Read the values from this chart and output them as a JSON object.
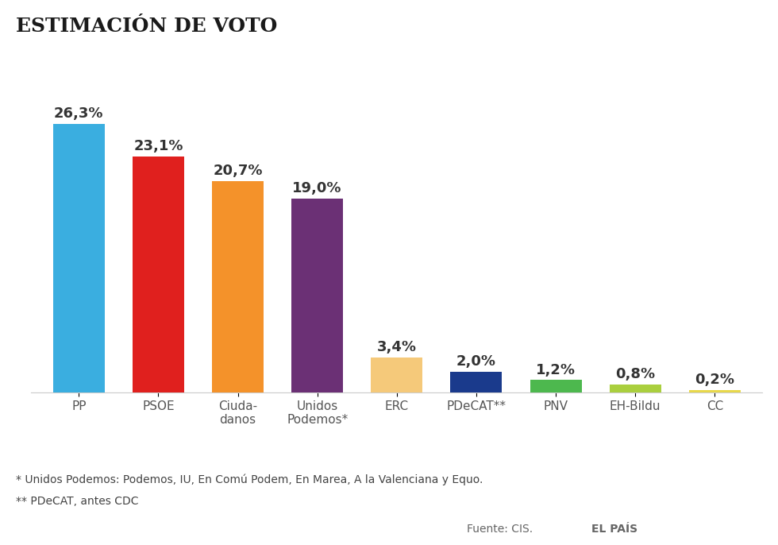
{
  "title": "ESTIMACIÓN DE VOTO",
  "categories": [
    "PP",
    "PSOE",
    "Ciuda-\ndanos",
    "Unidos\nPodemos*",
    "ERC",
    "PDeCAT**",
    "PNV",
    "EH-Bildu",
    "CC"
  ],
  "values": [
    26.3,
    23.1,
    20.7,
    19.0,
    3.4,
    2.0,
    1.2,
    0.8,
    0.2
  ],
  "labels": [
    "26,3%",
    "23,1%",
    "20,7%",
    "19,0%",
    "3,4%",
    "2,0%",
    "1,2%",
    "0,8%",
    "0,2%"
  ],
  "colors": [
    "#3aaee0",
    "#e0201e",
    "#f4922a",
    "#6b3075",
    "#f5c97a",
    "#1a3a8c",
    "#4db84e",
    "#aacf3e",
    "#e8d84a"
  ],
  "footnote1": "* Unidos Podemos: Podemos, IU, En Comú Podem, En Marea, A la Valenciana y Equo.",
  "footnote2": "** PDeCAT, antes CDC",
  "source": "Fuente: CIS.",
  "brand": "EL PAÍS",
  "background_color": "#ffffff",
  "title_fontsize": 18,
  "label_fontsize": 13,
  "tick_fontsize": 11,
  "footnote_fontsize": 10
}
